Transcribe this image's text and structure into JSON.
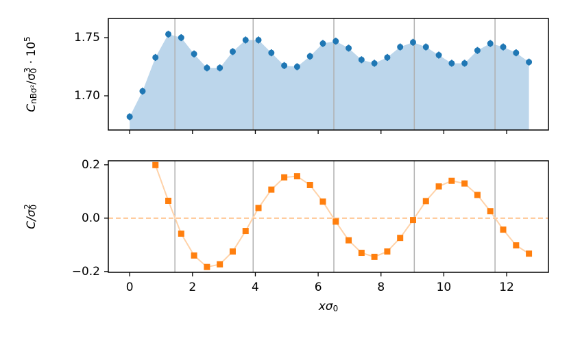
{
  "chart_data": [
    {
      "type": "scatter",
      "ylabel_parts": [
        "C",
        "nBσ²",
        "/σ",
        "0",
        "3",
        " · 10",
        "5"
      ],
      "x": [
        0,
        0.41,
        0.82,
        1.23,
        1.64,
        2.05,
        2.46,
        2.87,
        3.28,
        3.69,
        4.1,
        4.51,
        4.92,
        5.33,
        5.74,
        6.15,
        6.56,
        6.97,
        7.38,
        7.79,
        8.2,
        8.61,
        9.02,
        9.43,
        9.84,
        10.25,
        10.66,
        11.07,
        11.48,
        11.89,
        12.3,
        12.71
      ],
      "values": [
        1.682,
        1.704,
        1.733,
        1.753,
        1.75,
        1.736,
        1.724,
        1.724,
        1.738,
        1.748,
        1.748,
        1.737,
        1.726,
        1.725,
        1.734,
        1.745,
        1.747,
        1.741,
        1.731,
        1.728,
        1.733,
        1.742,
        1.746,
        1.742,
        1.735,
        1.728,
        1.728,
        1.739,
        1.745,
        1.742,
        1.737,
        1.729
      ],
      "errors": [
        0.003,
        0.003,
        0.003,
        0.003,
        0.003,
        0.003,
        0.003,
        0.003,
        0.003,
        0.003,
        0.003,
        0.003,
        0.003,
        0.003,
        0.003,
        0.003,
        0.003,
        0.003,
        0.003,
        0.003,
        0.003,
        0.003,
        0.003,
        0.003,
        0.003,
        0.003,
        0.003,
        0.003,
        0.003,
        0.003,
        0.003,
        0.003
      ],
      "color": "#1f77b4",
      "area_color": "#bcd6eb",
      "vlines": [
        1.44,
        3.93,
        6.5,
        9.06,
        11.63
      ],
      "vline_color": "#b0b0b0",
      "xlim": [
        -0.68,
        13.33
      ],
      "xticks": [
        0,
        2,
        4,
        6,
        8,
        10,
        12
      ],
      "xtick_labels": false,
      "ylim": [
        1.6706,
        1.7665
      ],
      "yticks": [
        {
          "value": 1.7,
          "label": "1.70"
        },
        1.75
      ]
    },
    {
      "type": "line",
      "ylabel_parts": [
        "C/σ",
        "0",
        "2"
      ],
      "xlabel_parts": [
        "xσ",
        "0"
      ],
      "x": [
        0.82,
        1.23,
        1.64,
        2.05,
        2.46,
        2.87,
        3.28,
        3.69,
        4.1,
        4.51,
        4.92,
        5.33,
        5.74,
        6.15,
        6.56,
        6.97,
        7.38,
        7.79,
        8.2,
        8.61,
        9.02,
        9.43,
        9.84,
        10.25,
        10.66,
        11.07,
        11.48,
        11.89,
        12.3,
        12.71
      ],
      "values": [
        0.199,
        0.065,
        -0.058,
        -0.14,
        -0.183,
        -0.173,
        -0.125,
        -0.048,
        0.038,
        0.107,
        0.153,
        0.157,
        0.124,
        0.062,
        -0.013,
        -0.083,
        -0.13,
        -0.145,
        -0.125,
        -0.074,
        -0.007,
        0.064,
        0.119,
        0.14,
        0.13,
        0.087,
        0.026,
        -0.043,
        -0.102,
        -0.133
      ],
      "color": "#ff7f0e",
      "line_color": "#ffd2a8",
      "hline": 0,
      "vlines": [
        1.44,
        3.93,
        6.5,
        9.06,
        11.63
      ],
      "vline_color": "#b0b0b0",
      "xlim": [
        -0.68,
        13.33
      ],
      "xticks": [
        0,
        2,
        4,
        6,
        8,
        10,
        12
      ],
      "xtick_labels": true,
      "ylim": [
        -0.203,
        0.215
      ],
      "yticks": [
        {
          "value": -0.2,
          "label": "−0.2"
        },
        {
          "value": 0,
          "label": "0.0"
        },
        0.2
      ]
    }
  ]
}
